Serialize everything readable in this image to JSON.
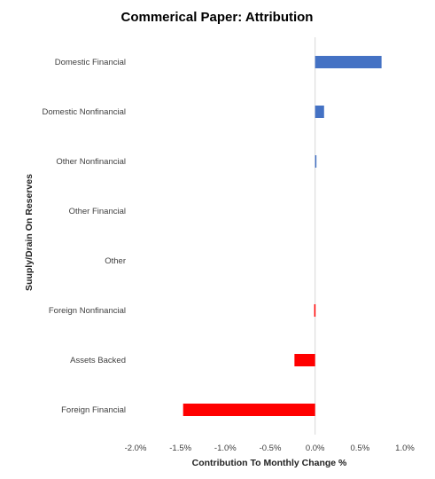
{
  "chart_data": {
    "type": "bar",
    "orientation": "horizontal",
    "title": "Commerical Paper: Attribution",
    "xlabel": "Contribution To Monthly Change %",
    "ylabel": "Suuply/Drain On Reserves",
    "categories": [
      "Domestic Financial",
      "Domestic Nonfinancial",
      "Other Nonfinancial",
      "Other Financial",
      "Other",
      "Foreign Nonfinancial",
      "Assets Backed",
      "Foreign Financial"
    ],
    "values": [
      0.74,
      0.1,
      0.01,
      0.0,
      0.0,
      -0.01,
      -0.23,
      -1.47
    ],
    "xlim": [
      -2.0,
      1.0
    ],
    "xticks": [
      -2.0,
      -1.5,
      -1.0,
      -0.5,
      0.0,
      0.5,
      1.0
    ],
    "xtick_labels": [
      "-2.0%",
      "-1.5%",
      "-1.0%",
      "-0.5%",
      "0.0%",
      "0.5%",
      "1.0%"
    ],
    "grid": false,
    "legend": "none",
    "colors": {
      "positive": "#4472C4",
      "negative": "#FF0000",
      "zero_line": "#D9D9D9"
    }
  }
}
